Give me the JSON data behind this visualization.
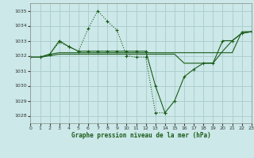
{
  "title": "Graphe pression niveau de la mer (hPa)",
  "bg_color": "#cce8e8",
  "grid_color": "#aacccc",
  "line_color": "#1a5c1a",
  "xlim": [
    0,
    23
  ],
  "ylim": [
    1027.5,
    1035.5
  ],
  "yticks": [
    1028,
    1029,
    1030,
    1031,
    1032,
    1033,
    1034,
    1035
  ],
  "xticks": [
    0,
    1,
    2,
    3,
    4,
    5,
    6,
    7,
    8,
    9,
    10,
    11,
    12,
    13,
    14,
    15,
    16,
    17,
    18,
    19,
    20,
    21,
    22,
    23
  ],
  "series": [
    {
      "x": [
        0,
        1,
        2,
        3,
        4,
        5,
        6,
        7,
        8,
        9,
        10,
        11,
        12,
        13,
        14
      ],
      "y": [
        1031.9,
        1031.9,
        1032.1,
        1032.9,
        1032.6,
        1032.3,
        1033.8,
        1035.0,
        1034.3,
        1033.7,
        1032.0,
        1031.9,
        1031.9,
        1028.2,
        1028.2
      ],
      "marker": true,
      "linestyle": "dotted",
      "lw": 0.8
    },
    {
      "x": [
        0,
        1,
        2,
        3,
        4,
        5,
        6,
        7,
        8,
        9,
        10,
        11,
        12,
        13,
        14,
        15,
        16,
        17,
        18,
        19,
        20,
        21,
        22,
        23
      ],
      "y": [
        1031.9,
        1031.9,
        1032.1,
        1033.0,
        1032.6,
        1032.3,
        1032.3,
        1032.3,
        1032.3,
        1032.3,
        1032.3,
        1032.3,
        1032.3,
        1030.0,
        1028.2,
        1029.0,
        1030.6,
        1031.1,
        1031.5,
        1031.5,
        1033.0,
        1033.0,
        1033.5,
        1033.6
      ],
      "marker": true,
      "linestyle": "solid",
      "lw": 0.8
    },
    {
      "x": [
        0,
        1,
        2,
        3,
        4,
        5,
        6,
        7,
        8,
        9,
        10,
        11,
        12,
        13,
        14,
        15,
        16,
        17,
        18,
        19,
        20,
        21,
        22,
        23
      ],
      "y": [
        1031.9,
        1031.9,
        1032.1,
        1032.2,
        1032.2,
        1032.2,
        1032.2,
        1032.2,
        1032.2,
        1032.2,
        1032.2,
        1032.2,
        1032.2,
        1032.2,
        1032.2,
        1032.2,
        1032.2,
        1032.2,
        1032.2,
        1032.2,
        1032.2,
        1032.2,
        1033.6,
        1033.6
      ],
      "marker": false,
      "linestyle": "solid",
      "lw": 0.8
    },
    {
      "x": [
        0,
        1,
        2,
        3,
        4,
        5,
        6,
        7,
        8,
        9,
        10,
        11,
        12,
        13,
        14,
        15,
        16,
        17,
        18,
        19,
        20,
        21,
        22,
        23
      ],
      "y": [
        1031.9,
        1031.9,
        1032.0,
        1032.1,
        1032.1,
        1032.1,
        1032.1,
        1032.1,
        1032.1,
        1032.1,
        1032.1,
        1032.1,
        1032.1,
        1032.1,
        1032.1,
        1032.1,
        1031.5,
        1031.5,
        1031.5,
        1031.5,
        1032.3,
        1033.0,
        1033.5,
        1033.6
      ],
      "marker": false,
      "linestyle": "solid",
      "lw": 0.8
    }
  ]
}
